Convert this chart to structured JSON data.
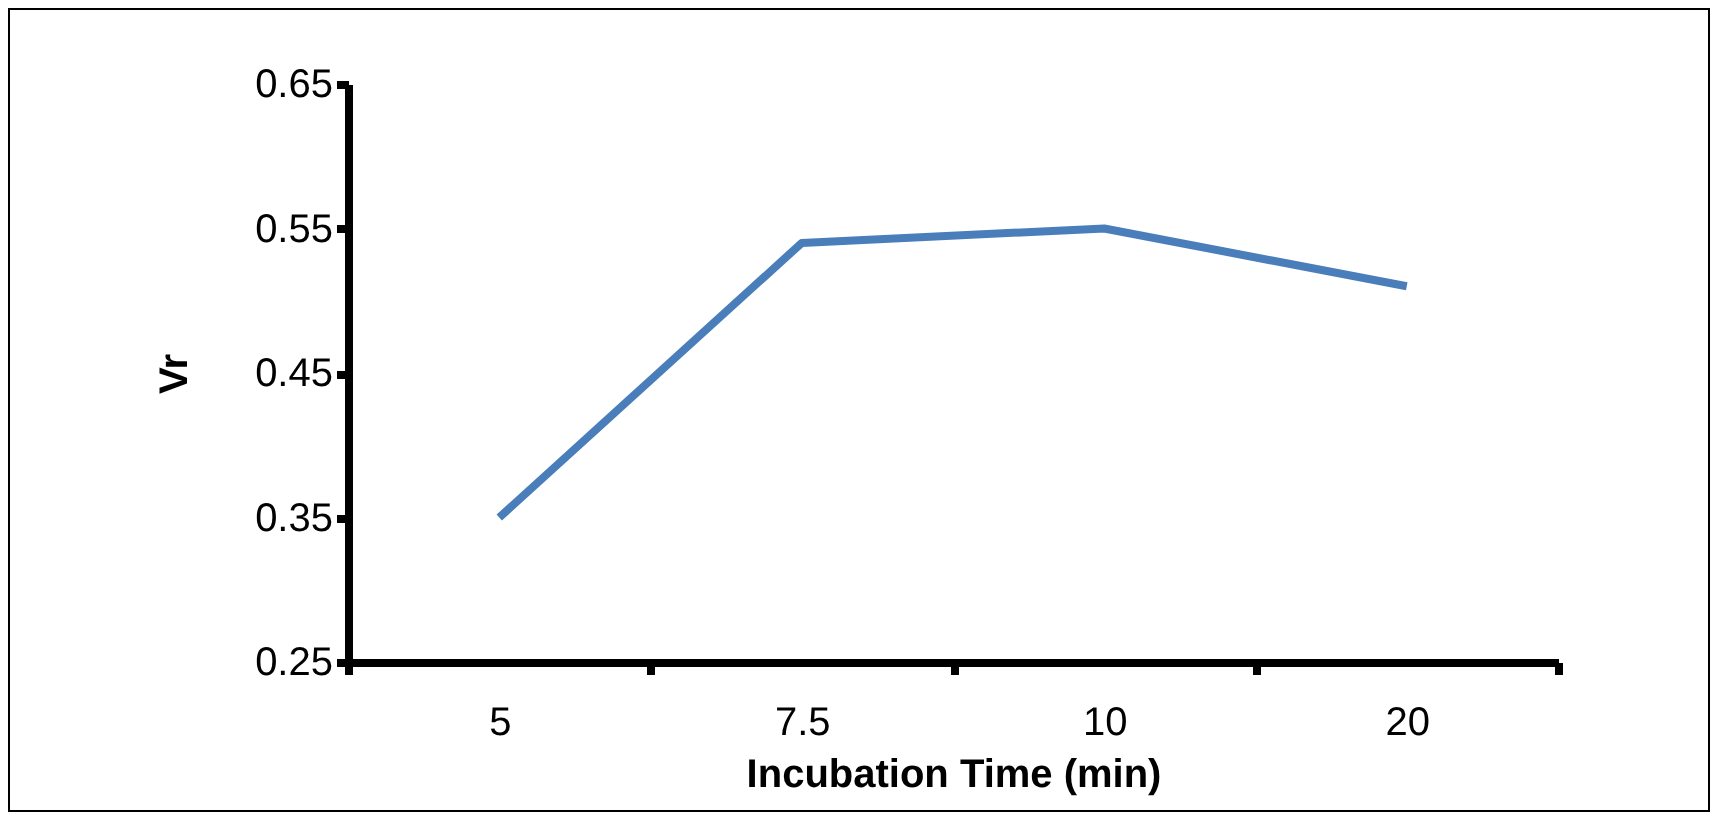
{
  "chart_data": {
    "type": "line",
    "xlabel": "Incubation Time (min)",
    "ylabel": "Vr",
    "categories": [
      "5",
      "7.5",
      "10",
      "20"
    ],
    "series": [
      {
        "color": "#4a7ebb",
        "values": [
          0.35,
          0.54,
          0.55,
          0.51
        ]
      }
    ],
    "ylim": [
      0.25,
      0.65
    ],
    "yticks": [
      0.25,
      0.35,
      0.45,
      0.55,
      0.65
    ],
    "grid": false,
    "marker": "none"
  }
}
